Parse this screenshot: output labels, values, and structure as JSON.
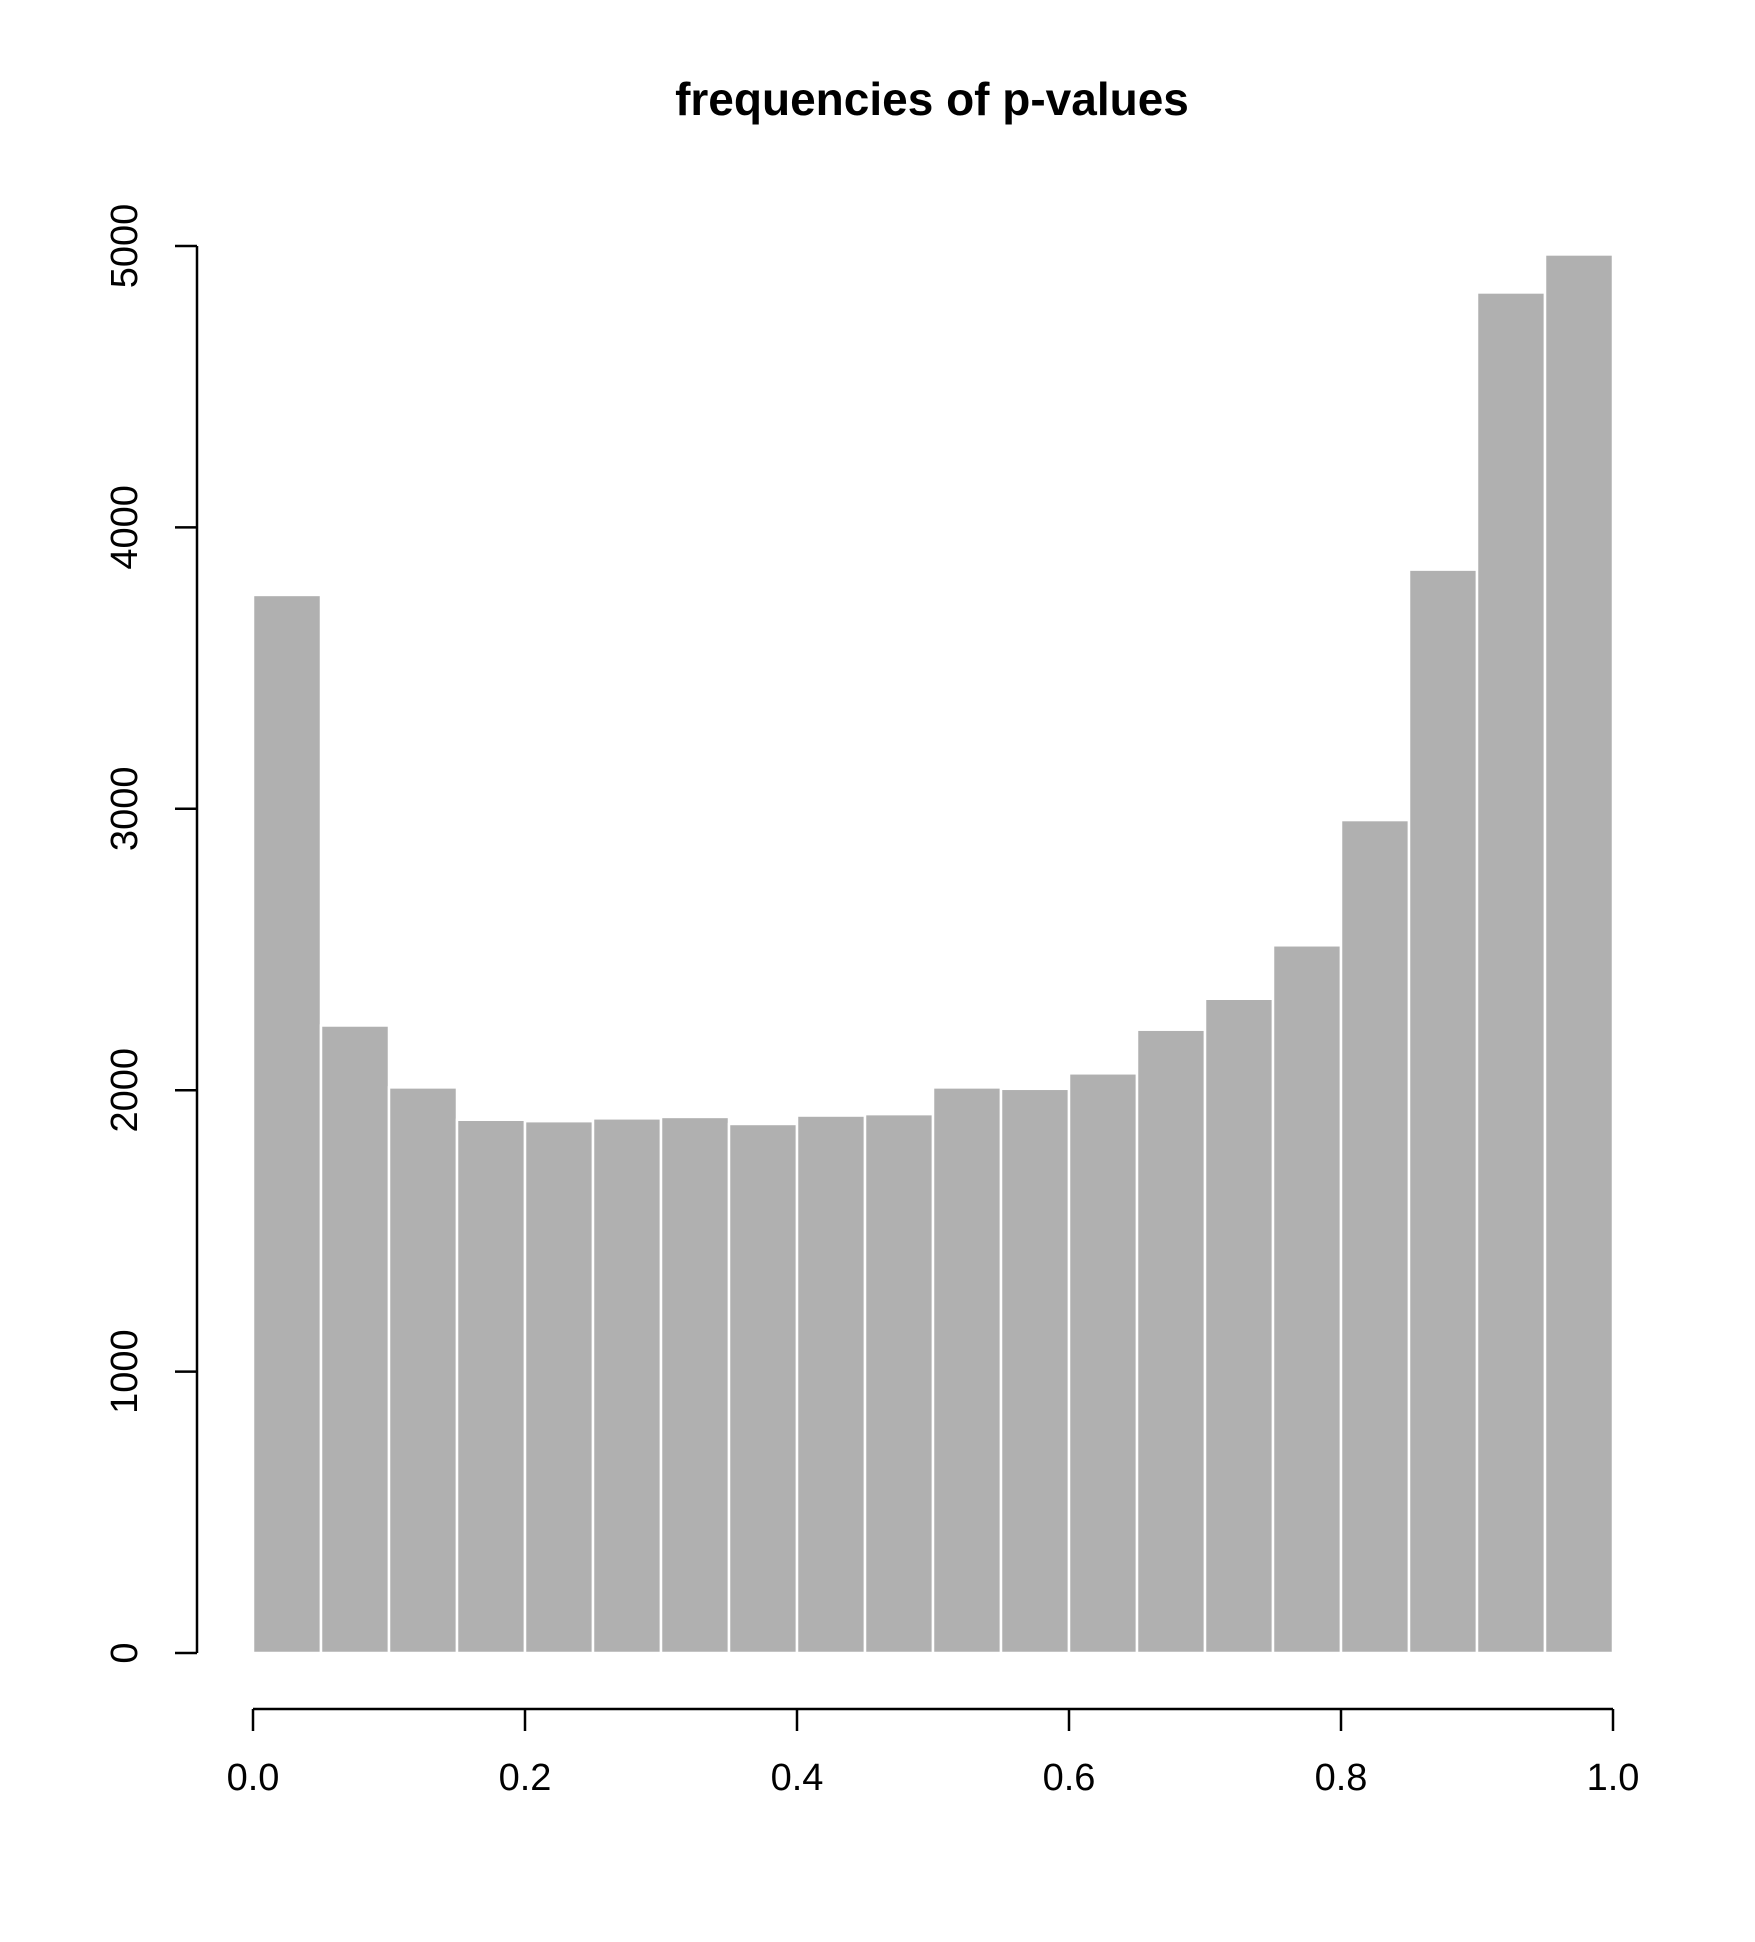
{
  "chart_data": {
    "type": "bar",
    "title": "frequencies of p-values",
    "xlabel": "",
    "ylabel": "",
    "bar_color": "#b0b0b0",
    "bar_border_color": "#ffffff",
    "axis_color": "#000000",
    "xlim": [
      0,
      1
    ],
    "ylim": [
      0,
      5000
    ],
    "grid": false,
    "legend": "none",
    "bin_width": 0.05,
    "bin_edges": [
      0.0,
      0.05,
      0.1,
      0.15,
      0.2,
      0.25,
      0.3,
      0.35,
      0.4,
      0.45,
      0.5,
      0.55,
      0.6,
      0.65,
      0.7,
      0.75,
      0.8,
      0.85,
      0.9,
      0.95,
      1.0
    ],
    "values": [
      3760,
      2230,
      2010,
      1895,
      1890,
      1900,
      1905,
      1880,
      1910,
      1915,
      2010,
      2005,
      2060,
      2215,
      2325,
      2515,
      2960,
      3850,
      4835,
      4970
    ],
    "x_ticks": [
      0.0,
      0.2,
      0.4,
      0.6,
      0.8,
      1.0
    ],
    "x_tick_labels": [
      "0.0",
      "0.2",
      "0.4",
      "0.6",
      "0.8",
      "1.0"
    ],
    "y_ticks": [
      0,
      1000,
      2000,
      3000,
      4000,
      5000
    ],
    "y_tick_labels": [
      "0",
      "1000",
      "2000",
      "3000",
      "4000",
      "5000"
    ]
  }
}
